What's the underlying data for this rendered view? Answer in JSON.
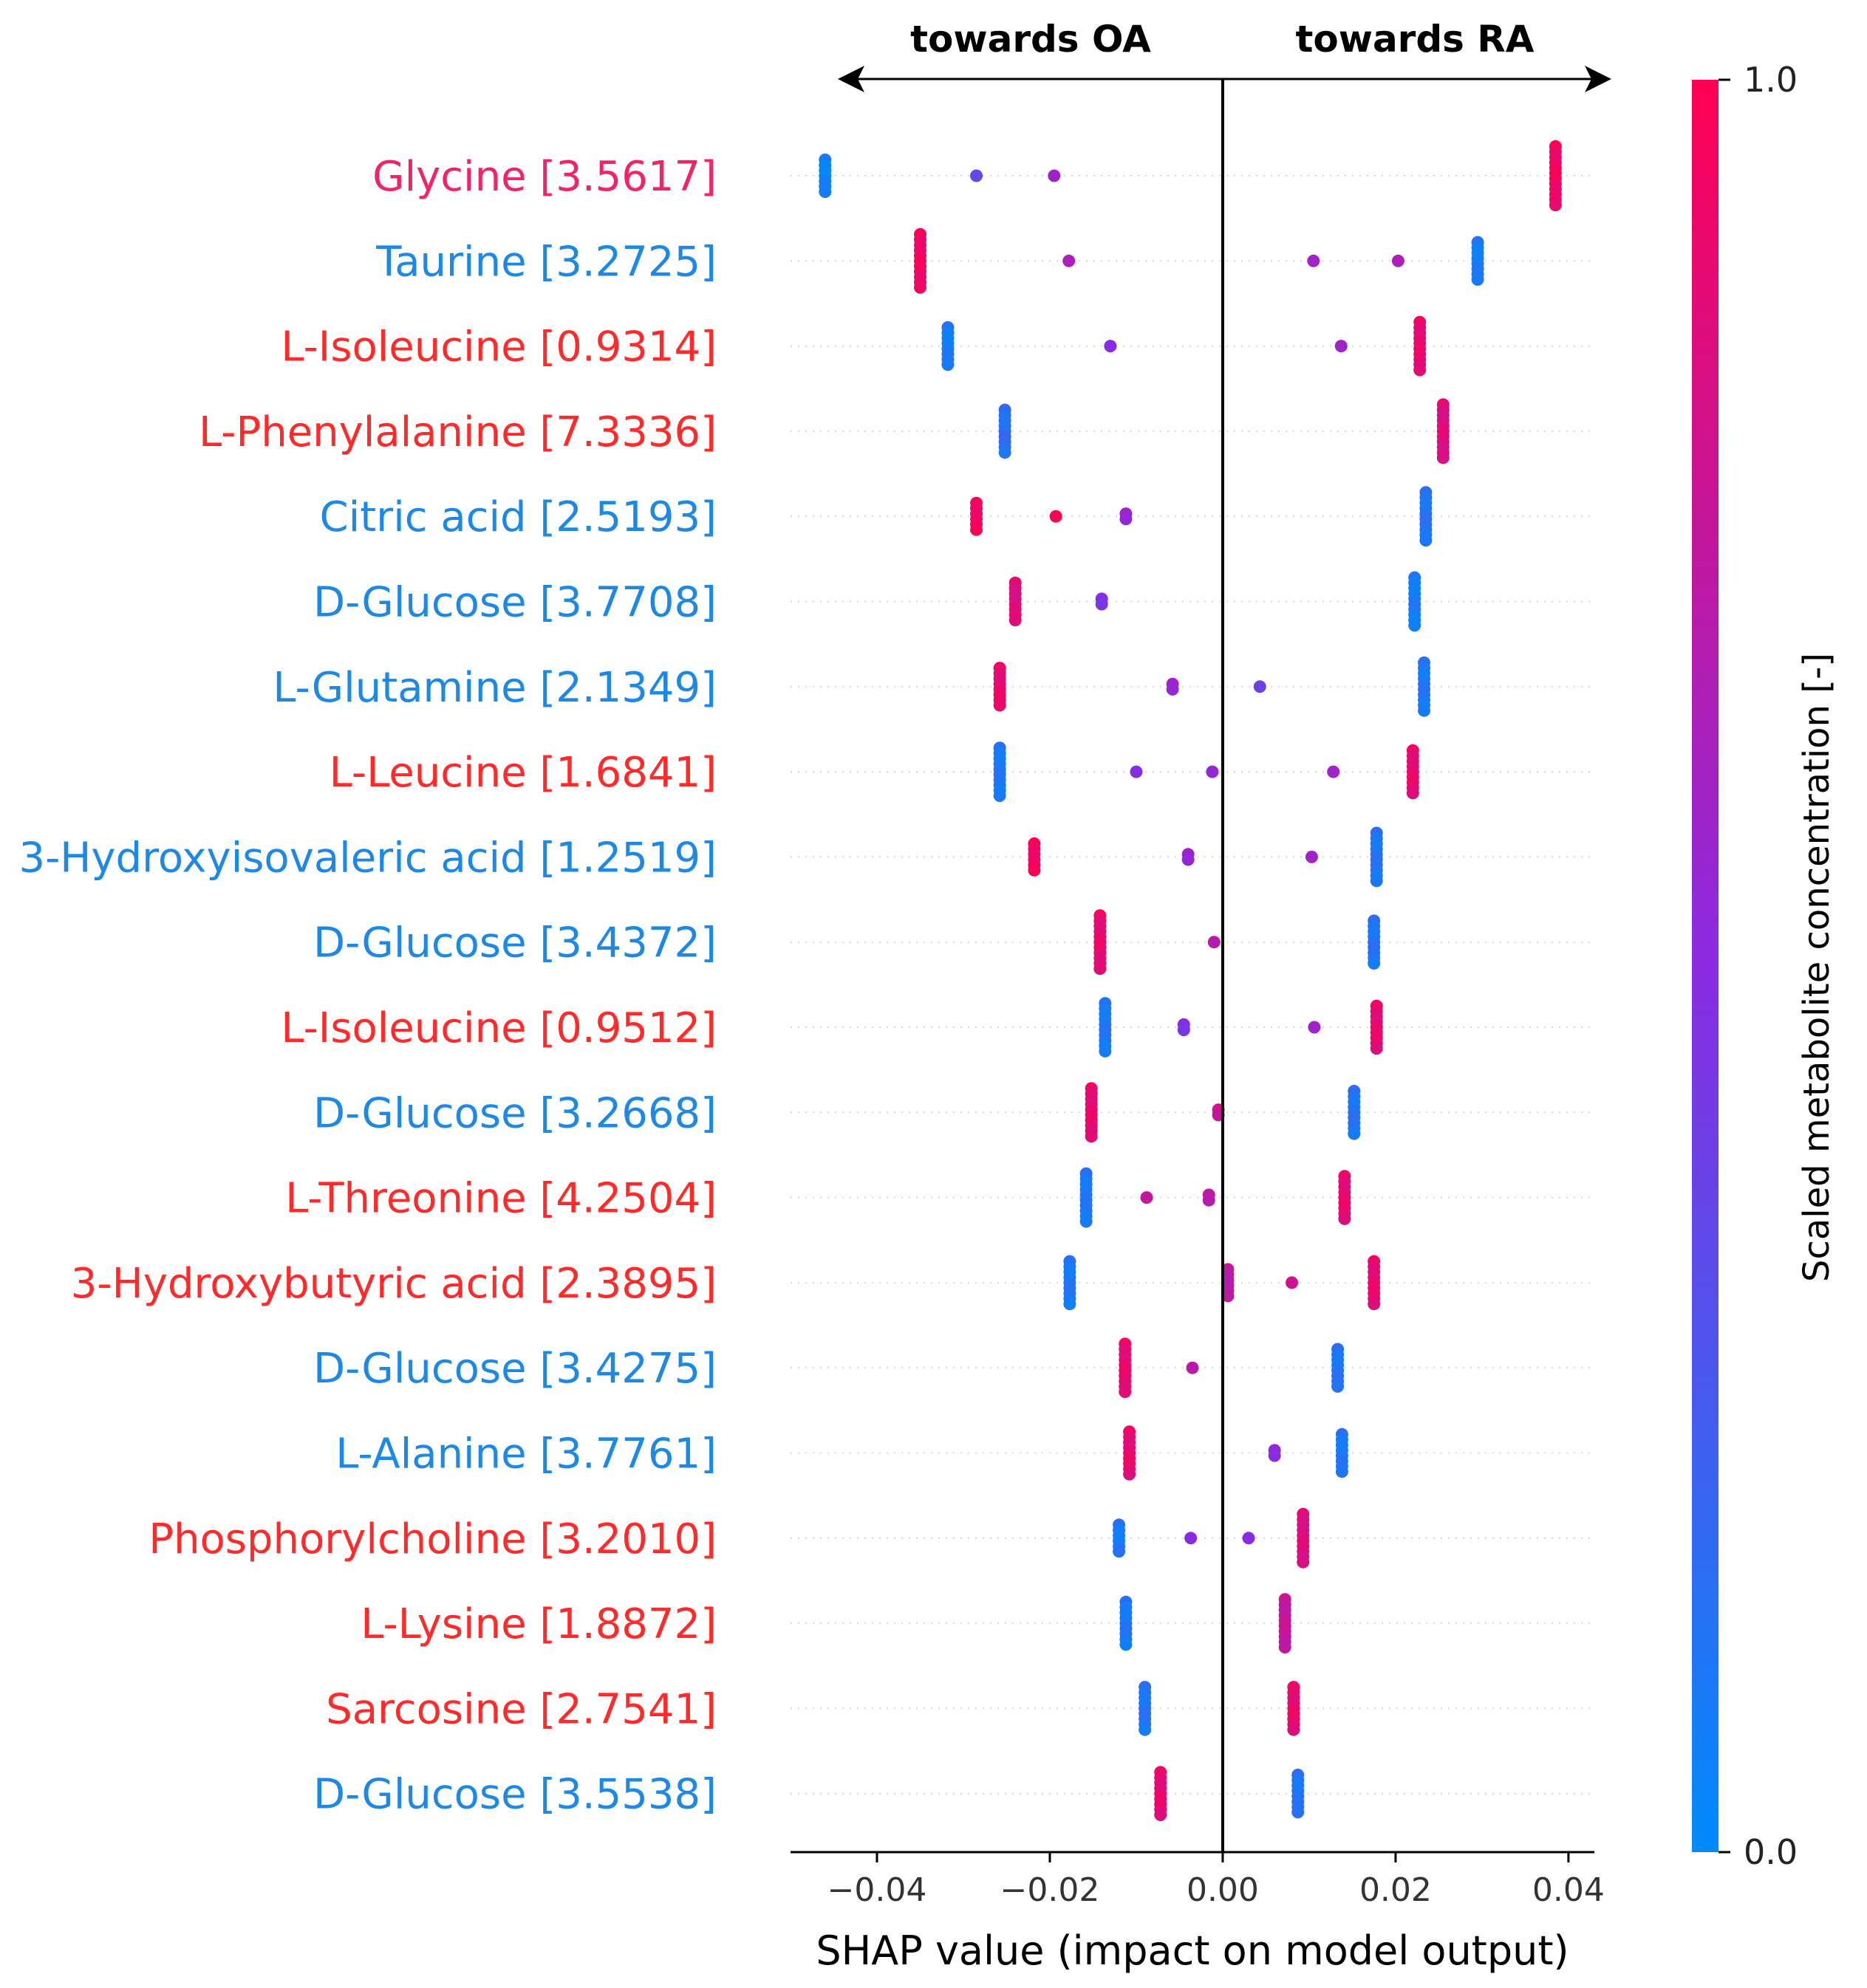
{
  "chart_data": {
    "type": "scatter",
    "subtype": "shap-beeswarm",
    "direction_labels": {
      "left": "towards OA",
      "right": "towards RA"
    },
    "xlabel": "SHAP value (impact on model output)",
    "xlim": [
      -0.05,
      0.043
    ],
    "x_ticks": [
      {
        "value": -0.04,
        "label": "−0.04"
      },
      {
        "value": -0.02,
        "label": "−0.02"
      },
      {
        "value": 0.0,
        "label": "0.00"
      },
      {
        "value": 0.02,
        "label": "0.02"
      },
      {
        "value": 0.04,
        "label": "0.04"
      }
    ],
    "colorbar": {
      "label": "Scaled metabolite concentration [-]",
      "min_label": "0.0",
      "max_label": "1.0",
      "low_color": "#008bfb",
      "mid_color": "#8a2be2",
      "high_color": "#ff0052"
    },
    "label_colors": {
      "high": "#ff2a2a",
      "low": "#1e88e5",
      "glycine": "#f0246a"
    },
    "features": [
      {
        "label": "Glycine [3.5617]",
        "label_tone": "glycine",
        "clusters": [
          {
            "x": -0.046,
            "c": 0.05,
            "n": 7
          },
          {
            "x": -0.0285,
            "c": 0.3,
            "n": 1
          },
          {
            "x": -0.0195,
            "c": 0.55,
            "n": 1
          },
          {
            "x": 0.0385,
            "c": 0.95,
            "n": 12
          }
        ]
      },
      {
        "label": "Taurine [3.2725]",
        "label_tone": "low",
        "clusters": [
          {
            "x": -0.035,
            "c": 0.95,
            "n": 11
          },
          {
            "x": -0.0178,
            "c": 0.6,
            "n": 1
          },
          {
            "x": 0.0105,
            "c": 0.55,
            "n": 1
          },
          {
            "x": 0.0203,
            "c": 0.6,
            "n": 1
          },
          {
            "x": 0.0295,
            "c": 0.08,
            "n": 8
          }
        ]
      },
      {
        "label": "L-Isoleucine [0.9314]",
        "label_tone": "high",
        "clusters": [
          {
            "x": -0.0318,
            "c": 0.08,
            "n": 8
          },
          {
            "x": -0.013,
            "c": 0.45,
            "n": 1
          },
          {
            "x": 0.0137,
            "c": 0.55,
            "n": 1
          },
          {
            "x": 0.0228,
            "c": 0.9,
            "n": 10
          }
        ]
      },
      {
        "label": "L-Phenylalanine [7.3336]",
        "label_tone": "high",
        "clusters": [
          {
            "x": -0.0252,
            "c": 0.15,
            "n": 9
          },
          {
            "x": 0.0255,
            "c": 0.85,
            "n": 11
          }
        ]
      },
      {
        "label": "Citric acid [2.5193]",
        "label_tone": "low",
        "clusters": [
          {
            "x": -0.0285,
            "c": 0.95,
            "n": 6
          },
          {
            "x": -0.0193,
            "c": 1.0,
            "n": 1
          },
          {
            "x": -0.0112,
            "c": 0.55,
            "n": 2
          },
          {
            "x": 0.0235,
            "c": 0.12,
            "n": 10
          }
        ]
      },
      {
        "label": "D-Glucose [3.7708]",
        "label_tone": "low",
        "clusters": [
          {
            "x": -0.024,
            "c": 0.85,
            "n": 8
          },
          {
            "x": -0.014,
            "c": 0.45,
            "n": 2
          },
          {
            "x": 0.0222,
            "c": 0.08,
            "n": 10
          }
        ]
      },
      {
        "label": "L-Glutamine [2.1349]",
        "label_tone": "low",
        "clusters": [
          {
            "x": -0.0258,
            "c": 0.9,
            "n": 8
          },
          {
            "x": -0.0058,
            "c": 0.55,
            "n": 2
          },
          {
            "x": 0.0043,
            "c": 0.35,
            "n": 1
          },
          {
            "x": 0.0233,
            "c": 0.1,
            "n": 10
          }
        ]
      },
      {
        "label": "L-Leucine [1.6841]",
        "label_tone": "high",
        "clusters": [
          {
            "x": -0.0258,
            "c": 0.1,
            "n": 10
          },
          {
            "x": -0.01,
            "c": 0.45,
            "n": 1
          },
          {
            "x": -0.0012,
            "c": 0.5,
            "n": 1
          },
          {
            "x": 0.0128,
            "c": 0.55,
            "n": 1
          },
          {
            "x": 0.022,
            "c": 0.9,
            "n": 9
          }
        ]
      },
      {
        "label": "3-Hydroxyisovaleric acid [1.2519]",
        "label_tone": "low",
        "clusters": [
          {
            "x": -0.0218,
            "c": 0.95,
            "n": 6
          },
          {
            "x": -0.004,
            "c": 0.55,
            "n": 2
          },
          {
            "x": 0.0103,
            "c": 0.55,
            "n": 1
          },
          {
            "x": 0.0178,
            "c": 0.12,
            "n": 10
          }
        ]
      },
      {
        "label": "D-Glucose [3.4372]",
        "label_tone": "low",
        "clusters": [
          {
            "x": -0.0142,
            "c": 0.9,
            "n": 11
          },
          {
            "x": -0.001,
            "c": 0.65,
            "n": 1
          },
          {
            "x": 0.0175,
            "c": 0.12,
            "n": 9
          }
        ]
      },
      {
        "label": "L-Isoleucine [0.9512]",
        "label_tone": "high",
        "clusters": [
          {
            "x": -0.0136,
            "c": 0.1,
            "n": 10
          },
          {
            "x": -0.0045,
            "c": 0.45,
            "n": 2
          },
          {
            "x": 0.0106,
            "c": 0.55,
            "n": 1
          },
          {
            "x": 0.0178,
            "c": 0.9,
            "n": 9
          }
        ]
      },
      {
        "label": "D-Glucose [3.2668]",
        "label_tone": "low",
        "clusters": [
          {
            "x": -0.0152,
            "c": 0.9,
            "n": 10
          },
          {
            "x": -0.0005,
            "c": 0.75,
            "n": 2
          },
          {
            "x": 0.0152,
            "c": 0.12,
            "n": 9
          }
        ]
      },
      {
        "label": "L-Threonine [4.2504]",
        "label_tone": "high",
        "clusters": [
          {
            "x": -0.0158,
            "c": 0.1,
            "n": 10
          },
          {
            "x": -0.0088,
            "c": 0.7,
            "n": 1
          },
          {
            "x": -0.0016,
            "c": 0.7,
            "n": 2
          },
          {
            "x": 0.0141,
            "c": 0.9,
            "n": 9
          }
        ]
      },
      {
        "label": "3-Hydroxybutyric acid [2.3895]",
        "label_tone": "high",
        "clusters": [
          {
            "x": -0.0177,
            "c": 0.1,
            "n": 9
          },
          {
            "x": 0.0006,
            "c": 0.7,
            "n": 6
          },
          {
            "x": 0.008,
            "c": 0.75,
            "n": 1
          },
          {
            "x": 0.0175,
            "c": 0.9,
            "n": 9
          }
        ]
      },
      {
        "label": "D-Glucose [3.4275]",
        "label_tone": "low",
        "clusters": [
          {
            "x": -0.0113,
            "c": 0.9,
            "n": 10
          },
          {
            "x": -0.0035,
            "c": 0.65,
            "n": 1
          },
          {
            "x": 0.0133,
            "c": 0.12,
            "n": 8
          }
        ]
      },
      {
        "label": "L-Alanine [3.7761]",
        "label_tone": "low",
        "clusters": [
          {
            "x": -0.0108,
            "c": 0.9,
            "n": 9
          },
          {
            "x": 0.006,
            "c": 0.5,
            "n": 2
          },
          {
            "x": 0.0138,
            "c": 0.1,
            "n": 8
          }
        ]
      },
      {
        "label": "Phosphorylcholine [3.2010]",
        "label_tone": "high",
        "clusters": [
          {
            "x": -0.012,
            "c": 0.1,
            "n": 6
          },
          {
            "x": -0.0037,
            "c": 0.45,
            "n": 1
          },
          {
            "x": 0.003,
            "c": 0.45,
            "n": 1
          },
          {
            "x": 0.0093,
            "c": 0.85,
            "n": 10
          }
        ]
      },
      {
        "label": "L-Lysine [1.8872]",
        "label_tone": "high",
        "clusters": [
          {
            "x": -0.0112,
            "c": 0.1,
            "n": 9
          },
          {
            "x": 0.0072,
            "c": 0.75,
            "n": 10
          }
        ]
      },
      {
        "label": "Sarcosine [2.7541]",
        "label_tone": "high",
        "clusters": [
          {
            "x": -0.009,
            "c": 0.12,
            "n": 9
          },
          {
            "x": 0.0082,
            "c": 0.9,
            "n": 9
          }
        ]
      },
      {
        "label": "D-Glucose [3.5538]",
        "label_tone": "low",
        "clusters": [
          {
            "x": -0.0072,
            "c": 0.9,
            "n": 9
          },
          {
            "x": 0.0087,
            "c": 0.12,
            "n": 8
          }
        ]
      }
    ]
  }
}
